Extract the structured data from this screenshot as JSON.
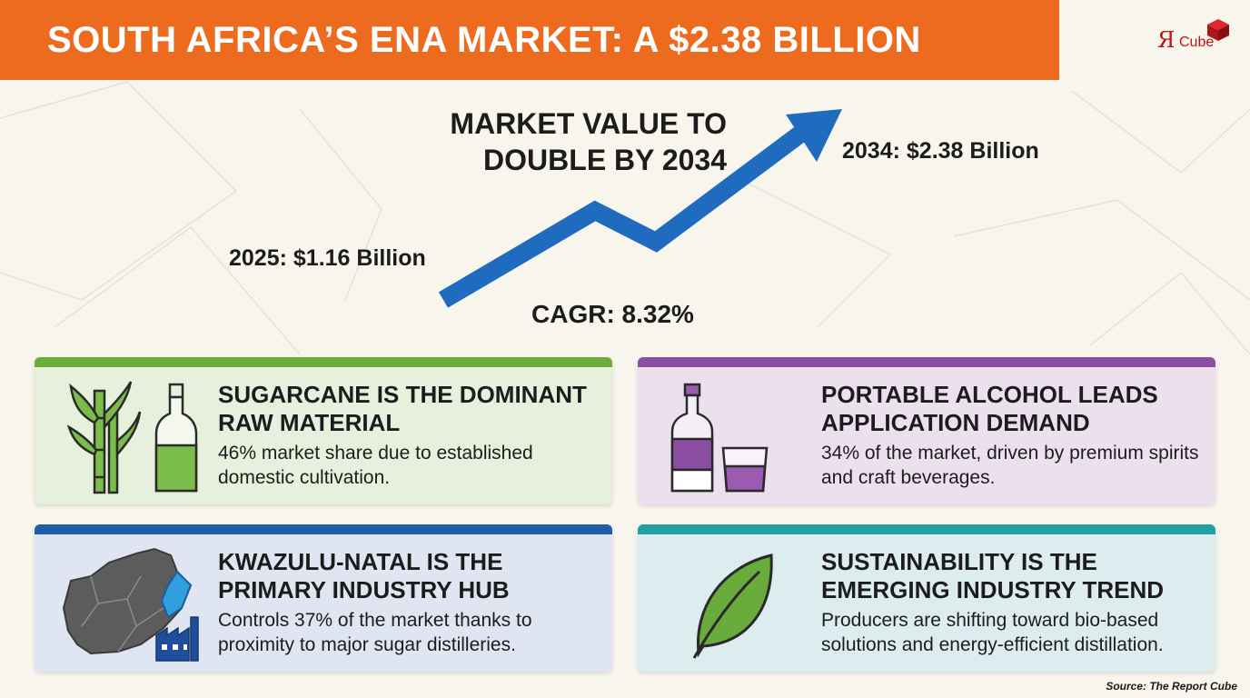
{
  "banner": {
    "title": "SOUTH AFRICA’S ENA MARKET: A $2.38 BILLION"
  },
  "logo": {
    "r": "Я",
    "text": "Cube"
  },
  "colors": {
    "banner": "#ec6b1f",
    "arrow": "#1f6bc0",
    "green": "#6aac3b",
    "purple": "#8c4ea3",
    "blue": "#1f5ea8",
    "teal": "#23a0a3"
  },
  "chart_data": {
    "type": "line",
    "title": "MARKET VALUE TO\nDOUBLE BY 2034",
    "x": [
      "2025",
      "2034"
    ],
    "series": [
      {
        "values": [
          1.16,
          2.38
        ]
      }
    ],
    "annotations": {
      "start": "2025: $1.16 Billion",
      "end": "2034: $2.38 Billion",
      "cagr": "CAGR: 8.32%"
    }
  },
  "cards": {
    "sugarcane": {
      "icon": "sugarcane-bottle-icon",
      "title": "SUGARCANE IS THE DOMINANT RAW MATERIAL",
      "desc": "46% market share due to established domestic cultivation."
    },
    "alcohol": {
      "icon": "liquor-bottle-glass-icon",
      "title": "PORTABLE ALCOHOL LEADS APPLICATION DEMAND",
      "desc": "34% of the market, driven by premium spirits and craft beverages."
    },
    "kwazulu": {
      "icon": "south-africa-map-factory-icon",
      "title": "KWAZULU-NATAL IS THE PRIMARY INDUSTRY HUB",
      "desc": "Controls 37% of the market thanks to proximity to major sugar distilleries."
    },
    "sustainability": {
      "icon": "leaf-icon",
      "title": "SUSTAINABILITY IS THE EMERGING INDUSTRY TREND",
      "desc": "Producers are shifting toward bio-based solutions and energy-efficient distillation."
    }
  },
  "source": "Source: The Report Cube"
}
